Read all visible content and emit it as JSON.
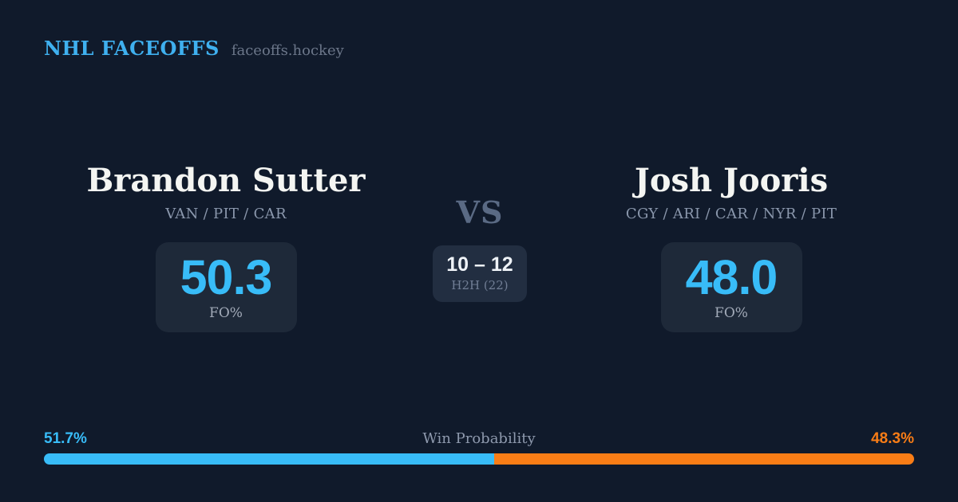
{
  "header": {
    "brand": "NHL FACEOFFS",
    "site": "faceoffs.hockey"
  },
  "players": [
    {
      "name": "Brandon Sutter",
      "teams": "VAN / PIT / CAR",
      "faceoff_pct": "50.3",
      "stat_label": "FO%",
      "win_probability_label": "51.7%",
      "win_probability_value": 51.7
    },
    {
      "name": "Josh Jooris",
      "teams": "CGY / ARI / CAR / NYR / PIT",
      "faceoff_pct": "48.0",
      "stat_label": "FO%",
      "win_probability_label": "48.3%",
      "win_probability_value": 48.3
    }
  ],
  "matchup": {
    "vs_label": "VS",
    "h2h_record": "10 – 12",
    "h2h_label": "H2H (22)"
  },
  "win_probability": {
    "title": "Win Probability"
  },
  "colors": {
    "background": "#101a2b",
    "panel": "#1e2939",
    "h2h_panel": "#222e41",
    "accent_blue": "#38bcf8",
    "accent_orange": "#f97d16",
    "name_text": "#f4f5f2",
    "muted_text": "#8a97ac"
  }
}
